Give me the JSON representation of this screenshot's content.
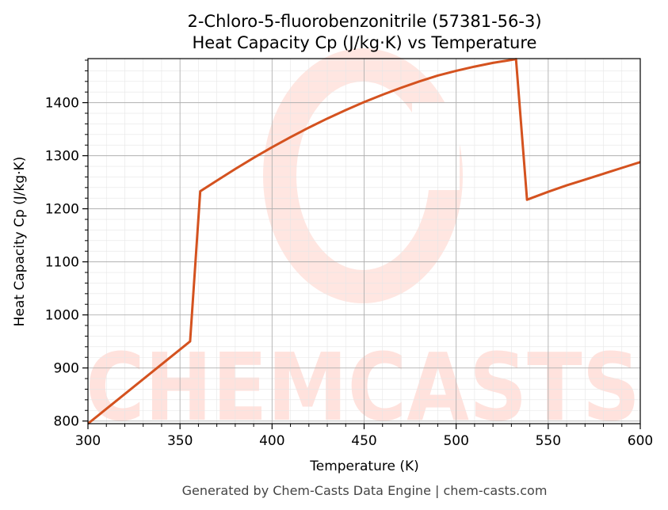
{
  "chart_data": {
    "type": "line",
    "title": "2-Chloro-5-fluorobenzonitrile (57381-56-3)",
    "subtitle": "Heat Capacity Cp (J/kg·K) vs Temperature",
    "xlabel": "Temperature (K)",
    "ylabel": "Heat Capacity Cp (J/kg·K)",
    "xlim": [
      300,
      600
    ],
    "ylim": [
      795,
      1483
    ],
    "xticks": [
      300,
      350,
      400,
      450,
      500,
      550,
      600
    ],
    "yticks": [
      800,
      900,
      1000,
      1100,
      1200,
      1300,
      1400
    ],
    "grid": true,
    "line_color": "#d4521f",
    "series": [
      {
        "x": [
          300,
          355.5,
          361,
          370,
          380,
          390,
          400,
          410,
          420,
          430,
          440,
          450,
          460,
          470,
          480,
          490,
          500,
          510,
          520,
          532.5,
          538.5,
          550,
          560,
          570,
          580,
          590,
          600
        ],
        "values": [
          793,
          950,
          1233,
          1253,
          1275,
          1296,
          1316,
          1335,
          1353,
          1370,
          1386,
          1401,
          1415,
          1428,
          1440,
          1451,
          1460,
          1468,
          1475,
          1482,
          1217,
          1232,
          1244,
          1255,
          1266,
          1277,
          1288
        ]
      }
    ]
  },
  "watermark": {
    "text": "CHEMCASTS",
    "color": "#ffd9d2"
  },
  "footer": "Generated by Chem-Casts Data Engine | chem-casts.com"
}
